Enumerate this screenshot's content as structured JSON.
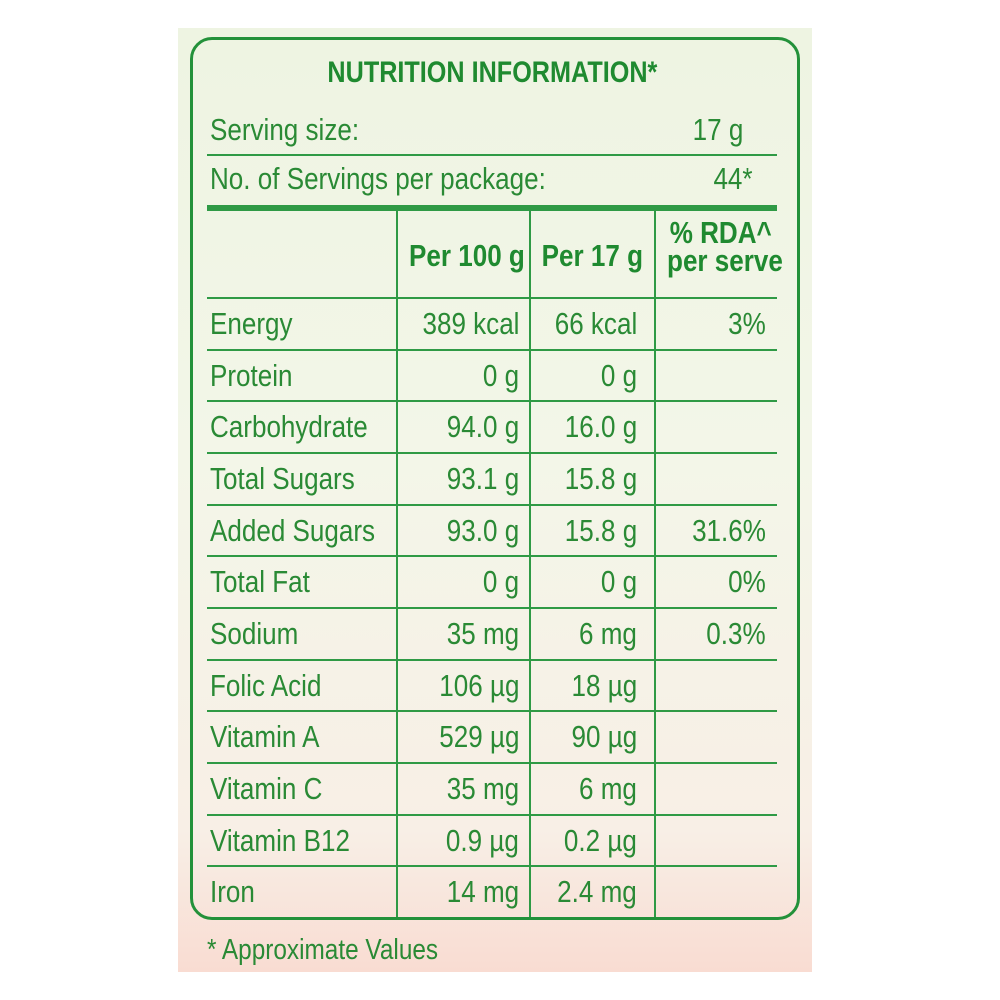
{
  "title": "NUTRITION INFORMATION*",
  "serving": {
    "label": "Serving size:",
    "value": "17 g"
  },
  "servings_per_package": {
    "label": "No. of Servings per package:",
    "value": "44*"
  },
  "table": {
    "headers": {
      "per_100g": "Per 100 g",
      "per_serve": "Per 17 g",
      "rda": [
        "% RDA^",
        "per serve"
      ]
    },
    "rows": [
      [
        "Energy",
        "389 kcal",
        "66 kcal",
        "3%"
      ],
      [
        "Protein",
        "0 g",
        "0 g"
      ],
      [
        "Carbohydrate",
        "94.0 g",
        "16.0 g"
      ],
      [
        "Total Sugars",
        "93.1 g",
        "15.8 g"
      ],
      [
        "Added Sugars",
        "93.0 g",
        "15.8 g",
        "31.6%"
      ],
      [
        "Total Fat",
        "0 g",
        "0 g",
        "0%"
      ],
      [
        "Sodium",
        "35 mg",
        "6 mg",
        "0.3%"
      ],
      [
        "Folic Acid",
        "106 µg",
        "18 µg"
      ],
      [
        "Vitamin A",
        "529 µg",
        "90 µg"
      ],
      [
        "Vitamin C",
        "35 mg",
        "6 mg"
      ],
      [
        "Vitamin B12",
        "0.9 µg",
        "0.2 µg"
      ],
      [
        "Iron",
        "14 mg",
        "2.4 mg"
      ]
    ]
  },
  "footnote": "* Approximate Values"
}
